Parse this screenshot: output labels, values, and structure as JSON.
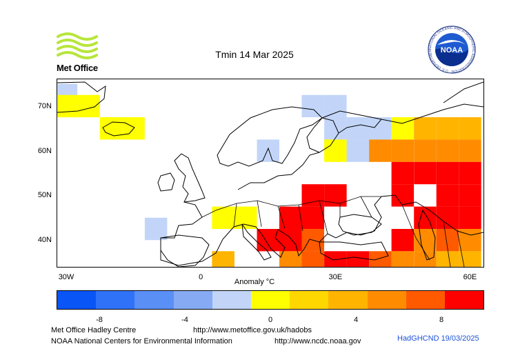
{
  "header": {
    "title": "Tmin 14 Mar 2025",
    "met_office_logo_text": "Met Office",
    "noaa_logo_text": "NOAA",
    "noaa_seal_ring_text": "NATIONAL OCEANIC AND ATMOSPHERIC ADMINISTRATION · U.S. DEPARTMENT OF COMMERCE"
  },
  "map": {
    "x_ticks": [
      {
        "label": "30W",
        "lon": -30
      },
      {
        "label": "0",
        "lon": 0
      },
      {
        "label": "30E",
        "lon": 30
      },
      {
        "label": "60E",
        "lon": 60
      }
    ],
    "y_ticks": [
      {
        "label": "70N",
        "lat": 70
      },
      {
        "label": "60N",
        "lat": 60
      },
      {
        "label": "50N",
        "lat": 50
      },
      {
        "label": "40N",
        "lat": 40
      }
    ],
    "lon_range": [
      -32,
      63
    ],
    "lat_range": [
      34,
      76
    ],
    "grid_resolution_deg": 5,
    "anomaly_cells": [
      {
        "lon": -30,
        "lat": 72.5,
        "anomaly": -1
      },
      {
        "lon": -30,
        "lat": 70,
        "anomaly": 0.5
      },
      {
        "lon": -25,
        "lat": 70,
        "anomaly": 0.5
      },
      {
        "lon": -20,
        "lat": 65,
        "anomaly": 0.5
      },
      {
        "lon": -15,
        "lat": 65,
        "anomaly": 0.5
      },
      {
        "lon": -10,
        "lat": 42.5,
        "anomaly": -2.5
      },
      {
        "lon": 5,
        "lat": 45,
        "anomaly": 0.5
      },
      {
        "lon": 10,
        "lat": 45,
        "anomaly": 0.5
      },
      {
        "lon": 5,
        "lat": 35,
        "anomaly": 3.5
      },
      {
        "lon": 15,
        "lat": 60,
        "anomaly": -1
      },
      {
        "lon": 25,
        "lat": 70,
        "anomaly": -2.5
      },
      {
        "lon": 30,
        "lat": 70,
        "anomaly": -2.5
      },
      {
        "lon": 30,
        "lat": 65,
        "anomaly": -2.5
      },
      {
        "lon": 35,
        "lat": 65,
        "anomaly": -2.5
      },
      {
        "lon": 40,
        "lat": 65,
        "anomaly": -1
      },
      {
        "lon": 30,
        "lat": 60,
        "anomaly": 0.5
      },
      {
        "lon": 35,
        "lat": 60,
        "anomaly": -1
      },
      {
        "lon": 45,
        "lat": 65,
        "anomaly": 0.5
      },
      {
        "lon": 50,
        "lat": 65,
        "anomaly": 3.5
      },
      {
        "lon": 55,
        "lat": 65,
        "anomaly": 3.5
      },
      {
        "lon": 60,
        "lat": 65,
        "anomaly": 3.5
      },
      {
        "lon": 40,
        "lat": 60,
        "anomaly": 5.5
      },
      {
        "lon": 45,
        "lat": 60,
        "anomaly": 5.5
      },
      {
        "lon": 50,
        "lat": 60,
        "anomaly": 5.5
      },
      {
        "lon": 55,
        "lat": 60,
        "anomaly": 5.5
      },
      {
        "lon": 60,
        "lat": 60,
        "anomaly": 5.5
      },
      {
        "lon": 45,
        "lat": 55,
        "anomaly": 9
      },
      {
        "lon": 50,
        "lat": 55,
        "anomaly": 9
      },
      {
        "lon": 55,
        "lat": 55,
        "anomaly": 9
      },
      {
        "lon": 60,
        "lat": 55,
        "anomaly": 9
      },
      {
        "lon": 25,
        "lat": 50,
        "anomaly": 9
      },
      {
        "lon": 30,
        "lat": 50,
        "anomaly": 9
      },
      {
        "lon": 45,
        "lat": 50,
        "anomaly": 9
      },
      {
        "lon": 55,
        "lat": 50,
        "anomaly": 9
      },
      {
        "lon": 60,
        "lat": 50,
        "anomaly": 9
      },
      {
        "lon": 20,
        "lat": 45,
        "anomaly": 9
      },
      {
        "lon": 25,
        "lat": 45,
        "anomaly": 9
      },
      {
        "lon": 50,
        "lat": 45,
        "anomaly": 9
      },
      {
        "lon": 55,
        "lat": 45,
        "anomaly": 9
      },
      {
        "lon": 60,
        "lat": 45,
        "anomaly": 9
      },
      {
        "lon": 15,
        "lat": 40,
        "anomaly": 9
      },
      {
        "lon": 20,
        "lat": 40,
        "anomaly": 9
      },
      {
        "lon": 25,
        "lat": 40,
        "anomaly": 7.5
      },
      {
        "lon": 45,
        "lat": 40,
        "anomaly": 9
      },
      {
        "lon": 50,
        "lat": 40,
        "anomaly": 5.5
      },
      {
        "lon": 55,
        "lat": 40,
        "anomaly": 7.5
      },
      {
        "lon": 60,
        "lat": 40,
        "anomaly": 5.5
      },
      {
        "lon": 20,
        "lat": 35,
        "anomaly": 5.5
      },
      {
        "lon": 25,
        "lat": 35,
        "anomaly": 7.5
      },
      {
        "lon": 30,
        "lat": 35,
        "anomaly": 9
      },
      {
        "lon": 35,
        "lat": 35,
        "anomaly": 9
      },
      {
        "lon": 40,
        "lat": 35,
        "anomaly": 7.5
      },
      {
        "lon": 45,
        "lat": 35,
        "anomaly": 5.5
      },
      {
        "lon": 50,
        "lat": 35,
        "anomaly": 5.5
      },
      {
        "lon": 55,
        "lat": 35,
        "anomaly": 3.5
      },
      {
        "lon": 60,
        "lat": 35,
        "anomaly": 3.5
      }
    ],
    "land_color": "#ffffff",
    "coast_color": "#000000"
  },
  "colorbar": {
    "label": "Anomaly °C",
    "colors": [
      "#0a55f5",
      "#2f72f7",
      "#5a8ff6",
      "#86abf4",
      "#c2d5f8",
      "#ffff00",
      "#ffd700",
      "#ffb400",
      "#ff8c00",
      "#ff5a00",
      "#ff0000"
    ],
    "range": [
      -10,
      10
    ],
    "ticks": [
      {
        "label": "-8",
        "value": -8
      },
      {
        "label": "-4",
        "value": -4
      },
      {
        "label": "0",
        "value": 0
      },
      {
        "label": "4",
        "value": 4
      },
      {
        "label": "8",
        "value": 8
      }
    ]
  },
  "footer": {
    "org1": "Met Office Hadley Centre",
    "url1": "http://www.metoffice.gov.uk/hadobs",
    "org2": "NOAA National Centers for Environmental Information",
    "url2": "http://www.ncdc.noaa.gov",
    "stamp": "HadGHCND 19/03/2025"
  }
}
